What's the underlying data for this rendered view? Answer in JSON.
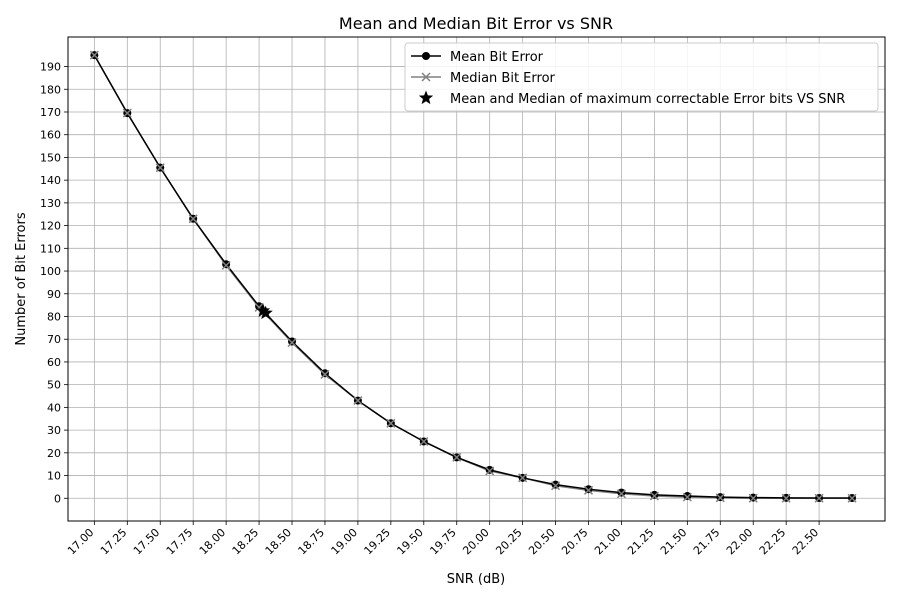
{
  "chart_data": {
    "type": "line",
    "title": "Mean and Median Bit Error vs SNR",
    "xlabel": "SNR (dB)",
    "ylabel": "Number of Bit Errors",
    "xlim": [
      16.8,
      23.0
    ],
    "ylim": [
      -10,
      203
    ],
    "x_ticks": [
      17.0,
      17.25,
      17.5,
      17.75,
      18.0,
      18.25,
      18.5,
      18.75,
      19.0,
      19.25,
      19.5,
      19.75,
      20.0,
      20.25,
      20.5,
      20.75,
      21.0,
      21.25,
      21.5,
      21.75,
      22.0,
      22.25,
      22.5
    ],
    "x_tick_labels": [
      "17.00",
      "17.25",
      "17.50",
      "17.75",
      "18.00",
      "18.25",
      "18.50",
      "18.75",
      "19.00",
      "19.25",
      "19.50",
      "19.75",
      "20.00",
      "20.25",
      "20.50",
      "20.75",
      "21.00",
      "21.25",
      "21.50",
      "21.75",
      "22.00",
      "22.25",
      "22.50"
    ],
    "y_ticks": [
      0,
      10,
      20,
      30,
      40,
      50,
      60,
      70,
      80,
      90,
      100,
      110,
      120,
      130,
      140,
      150,
      160,
      170,
      180,
      190
    ],
    "grid": true,
    "legend_position": "top-right",
    "series": [
      {
        "name": "Mean Bit Error",
        "color": "#000000",
        "marker": "circle",
        "x": [
          17.0,
          17.25,
          17.5,
          17.75,
          18.0,
          18.25,
          18.5,
          18.75,
          19.0,
          19.25,
          19.5,
          19.75,
          20.0,
          20.25,
          20.5,
          20.75,
          21.0,
          21.25,
          21.5,
          21.75,
          22.0,
          22.25,
          22.5,
          22.75
        ],
        "values": [
          195,
          169.5,
          145.5,
          123,
          103,
          84.5,
          69,
          55,
          43,
          33,
          25,
          18,
          12.5,
          9,
          6,
          4,
          2.5,
          1.5,
          1,
          0.5,
          0.3,
          0.2,
          0.1,
          0.1
        ]
      },
      {
        "name": "Median Bit Error",
        "color": "#808080",
        "marker": "x",
        "x": [
          17.0,
          17.25,
          17.5,
          17.75,
          18.0,
          18.25,
          18.5,
          18.75,
          19.0,
          19.25,
          19.5,
          19.75,
          20.0,
          20.25,
          20.5,
          20.75,
          21.0,
          21.25,
          21.5,
          21.75,
          22.0,
          22.25,
          22.5,
          22.75
        ],
        "values": [
          195,
          169.5,
          145.5,
          123,
          102.5,
          84,
          68.5,
          54.5,
          43,
          33,
          25,
          18,
          12,
          9,
          5.5,
          3.5,
          2,
          1,
          0.5,
          0.2,
          0,
          0,
          0,
          0
        ]
      }
    ],
    "special_points": {
      "name": "Mean and Median of maximum correctable Error bits VS SNR",
      "color": "#000000",
      "marker": "star",
      "points": [
        {
          "x": 18.28,
          "y": 82.5
        },
        {
          "x": 18.3,
          "y": 81.5
        }
      ]
    }
  }
}
